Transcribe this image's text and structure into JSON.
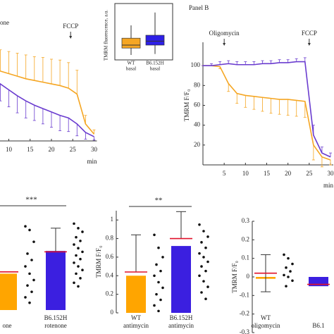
{
  "chart_data": [
    {
      "type": "line",
      "label": "one",
      "x_label": "min",
      "x": [
        0,
        2,
        4,
        6,
        8,
        10,
        12,
        14,
        16,
        18,
        20,
        22,
        24,
        26,
        28,
        30
      ],
      "xlim": [
        0,
        30
      ],
      "ylim": [
        0,
        120
      ],
      "xticks": [
        10,
        15,
        20,
        25,
        30
      ],
      "yticks": [],
      "annotations": [
        {
          "text": "FCCP",
          "x": 24.5
        }
      ],
      "series": [
        {
          "color": "#f5a623",
          "error_direction": "up",
          "values": [
            100,
            95,
            90,
            86,
            82,
            79,
            76,
            73,
            71,
            69,
            67,
            65,
            62,
            55,
            20,
            8
          ],
          "errors": [
            0,
            15,
            20,
            22,
            25,
            26,
            27,
            28,
            28,
            29,
            29,
            30,
            30,
            28,
            10,
            5
          ]
        },
        {
          "color": "#6a3ccf",
          "error_direction": "down",
          "values": [
            100,
            90,
            82,
            74,
            67,
            60,
            53,
            47,
            42,
            38,
            34,
            30,
            27,
            20,
            10,
            5
          ],
          "errors": [
            0,
            10,
            15,
            18,
            20,
            20,
            20,
            20,
            18,
            18,
            18,
            18,
            16,
            14,
            8,
            4
          ]
        }
      ]
    },
    {
      "type": "box",
      "y_label": "TMRM fluorescence, a.u.",
      "ylim": [
        0,
        500
      ],
      "categories": [
        [
          "WT",
          "basal"
        ],
        [
          "B6.152H",
          "basal"
        ]
      ],
      "colors": [
        "#f5a623",
        "#2d1fe6"
      ],
      "boxes": [
        {
          "min": 50,
          "q1": 120,
          "median": 150,
          "q3": 220,
          "max": 350
        },
        {
          "min": 60,
          "q1": 150,
          "median": 190,
          "q3": 250,
          "max": 480
        }
      ]
    },
    {
      "type": "line",
      "title": "Panel B",
      "x_label": "min",
      "y_label": "TMRM F/F₀",
      "x": [
        0,
        2,
        4,
        6,
        8,
        10,
        12,
        14,
        16,
        18,
        20,
        22,
        24,
        26,
        28,
        30
      ],
      "xlim": [
        0,
        30
      ],
      "ylim": [
        0,
        120
      ],
      "xticks": [
        5,
        10,
        15,
        20,
        25,
        30
      ],
      "yticks": [
        20,
        40,
        60,
        80,
        100
      ],
      "annotations": [
        {
          "text": "Oligomycin",
          "x": 5
        },
        {
          "text": "FCCP",
          "x": 25
        }
      ],
      "series": [
        {
          "color": "#f5a623",
          "error_direction": "down",
          "values": [
            100,
            100,
            99,
            82,
            72,
            70,
            69,
            68,
            67,
            66,
            66,
            65,
            64,
            20,
            8,
            5
          ],
          "errors": [
            0,
            0,
            2,
            8,
            10,
            12,
            13,
            14,
            15,
            15,
            16,
            16,
            16,
            15,
            10,
            5
          ]
        },
        {
          "color": "#6a3ccf",
          "error_direction": "up",
          "values": [
            100,
            100,
            101,
            102,
            101,
            101,
            101,
            102,
            102,
            103,
            103,
            104,
            104,
            30,
            12,
            8
          ],
          "errors": [
            0,
            2,
            3,
            3,
            3,
            3,
            3,
            3,
            3,
            3,
            3,
            3,
            4,
            10,
            6,
            4
          ]
        }
      ]
    },
    {
      "type": "bar",
      "ylim": [
        0,
        1.1
      ],
      "yticks": [],
      "significance": "***",
      "error_direction": "up",
      "categories": [
        [
          "one"
        ],
        [
          "B6.152H",
          "rotenone"
        ]
      ],
      "colors": [
        "#ffa500",
        "#3b1fe0"
      ],
      "values": [
        0.4,
        0.65
      ],
      "means": [
        0.42,
        0.64
      ],
      "errors": [
        null,
        0.26
      ],
      "points": [
        [
          0.92,
          0.88,
          0.75,
          0.62,
          0.55,
          0.48,
          0.4,
          0.33,
          0.27,
          0.2,
          0.14,
          0.08
        ],
        [
          0.95,
          0.9,
          0.86,
          0.8,
          0.76,
          0.72,
          0.68,
          0.64,
          0.6,
          0.56,
          0.52,
          0.48,
          0.44,
          0.4,
          0.35,
          0.3,
          0.26
        ]
      ]
    },
    {
      "type": "bar",
      "y_label": "TMRM F/F₀",
      "ylim": [
        0,
        1.1
      ],
      "yticks": [
        0,
        0.2,
        0.4,
        0.6,
        0.8,
        1
      ],
      "significance": "**",
      "error_direction": "up",
      "categories": [
        [
          "WT",
          "antimycin"
        ],
        [
          "B6.152H",
          "antimycin"
        ]
      ],
      "colors": [
        "#ffa500",
        "#3b1fe0"
      ],
      "values": [
        0.4,
        0.72
      ],
      "means": [
        0.44,
        0.8
      ],
      "errors": [
        0.4,
        0.29
      ],
      "points": [
        [
          0.84,
          0.7,
          0.6,
          0.52,
          0.45,
          0.4,
          0.33,
          0.27,
          0.2,
          0.14,
          0.08,
          0.02
        ],
        [
          0.95,
          0.88,
          0.82,
          0.76,
          0.7,
          0.64,
          0.6,
          0.55,
          0.5,
          0.45,
          0.4,
          0.34,
          0.28,
          0.22,
          0.15
        ]
      ]
    },
    {
      "type": "bar",
      "y_label": "TMRM F/F₀",
      "ylim": [
        -0.3,
        0.3
      ],
      "yticks": [
        -0.3,
        -0.2,
        -0.1,
        0,
        0.1,
        0.2,
        0.3
      ],
      "error_direction": "both",
      "categories": [
        [
          "WT",
          "oligomycin"
        ],
        [
          "B6.1"
        ]
      ],
      "colors": [
        "#ffa500",
        "#3b1fe0"
      ],
      "values": [
        -0.01,
        -0.05
      ],
      "means": [
        0.02,
        -0.04
      ],
      "errors": [
        0.1,
        null
      ],
      "points": [
        [
          0.12,
          0.1,
          0.07,
          0.05,
          0.03,
          0.01,
          0,
          -0.02,
          -0.05
        ],
        []
      ]
    }
  ]
}
